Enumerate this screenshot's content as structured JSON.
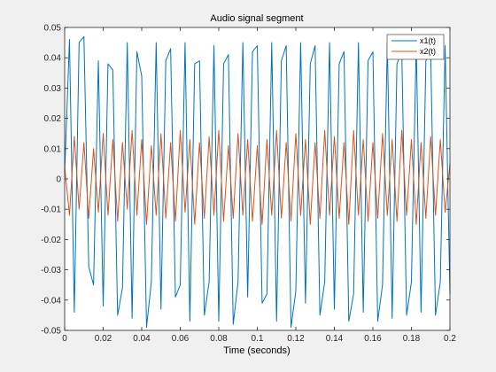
{
  "chart_data": {
    "type": "line",
    "title": "Audio signal segment",
    "xlabel": "Time (seconds)",
    "ylabel": "",
    "xlim": [
      0,
      0.2
    ],
    "ylim": [
      -0.05,
      0.05
    ],
    "x_ticks": [
      0,
      0.02,
      0.04,
      0.06,
      0.08,
      0.1,
      0.12,
      0.14,
      0.16,
      0.18,
      0.2
    ],
    "x_tick_labels": [
      "0",
      "0.02",
      "0.04",
      "0.06",
      "0.08",
      "0.1",
      "0.12",
      "0.14",
      "0.16",
      "0.18",
      "0.2"
    ],
    "y_ticks": [
      -0.05,
      -0.04,
      -0.03,
      -0.02,
      -0.01,
      0,
      0.01,
      0.02,
      0.03,
      0.04,
      0.05
    ],
    "y_tick_labels": [
      "-0.05",
      "-0.04",
      "-0.03",
      "-0.02",
      "-0.01",
      "0",
      "0.01",
      "0.02",
      "0.03",
      "0.04",
      "0.05"
    ],
    "grid": false,
    "legend_position": "top-right",
    "series": [
      {
        "name": "x1(t)",
        "color": "#0072BD",
        "x": [
          0,
          0.0025,
          0.005,
          0.0075,
          0.01,
          0.0125,
          0.015,
          0.0175,
          0.02,
          0.0225,
          0.025,
          0.0275,
          0.03,
          0.0325,
          0.035,
          0.0375,
          0.04,
          0.0425,
          0.045,
          0.0475,
          0.05,
          0.0525,
          0.055,
          0.0575,
          0.06,
          0.0625,
          0.065,
          0.0675,
          0.07,
          0.0725,
          0.075,
          0.0775,
          0.08,
          0.0825,
          0.085,
          0.0875,
          0.09,
          0.0925,
          0.095,
          0.0975,
          0.1,
          0.1025,
          0.105,
          0.1075,
          0.11,
          0.1125,
          0.115,
          0.1175,
          0.12,
          0.1225,
          0.125,
          0.1275,
          0.13,
          0.1325,
          0.135,
          0.1375,
          0.14,
          0.1425,
          0.145,
          0.1475,
          0.15,
          0.1525,
          0.155,
          0.1575,
          0.16,
          0.1625,
          0.165,
          0.1675,
          0.17,
          0.1725,
          0.175,
          0.1775,
          0.18,
          0.1825,
          0.185,
          0.1875,
          0.19,
          0.1925,
          0.195,
          0.1975,
          0.2
        ],
        "values": [
          0.002,
          0.046,
          -0.044,
          0.045,
          0.047,
          -0.029,
          -0.035,
          0.039,
          -0.042,
          0.038,
          0.036,
          -0.045,
          -0.036,
          0.045,
          -0.046,
          0.042,
          0.034,
          -0.049,
          -0.034,
          0.045,
          -0.043,
          0.039,
          0.043,
          -0.039,
          -0.035,
          0.045,
          -0.047,
          0.038,
          0.039,
          -0.045,
          -0.034,
          0.044,
          -0.047,
          0.038,
          0.041,
          -0.048,
          -0.034,
          0.045,
          -0.039,
          0.042,
          0.044,
          -0.041,
          -0.038,
          0.045,
          -0.047,
          0.039,
          0.044,
          -0.049,
          -0.037,
          0.045,
          -0.041,
          0.038,
          0.044,
          -0.045,
          -0.034,
          0.045,
          -0.043,
          0.038,
          0.042,
          -0.047,
          -0.038,
          0.045,
          -0.044,
          0.039,
          0.042,
          -0.047,
          -0.035,
          0.045,
          -0.046,
          0.038,
          0.042,
          -0.045,
          -0.034,
          0.045,
          -0.044,
          0.039,
          0.042,
          -0.045,
          -0.034,
          0.044,
          -0.038
        ]
      },
      {
        "name": "x2(t)",
        "color": "#D95319",
        "x": [
          0,
          0.0025,
          0.005,
          0.0075,
          0.01,
          0.0125,
          0.015,
          0.0175,
          0.02,
          0.0225,
          0.025,
          0.0275,
          0.03,
          0.0325,
          0.035,
          0.0375,
          0.04,
          0.0425,
          0.045,
          0.0475,
          0.05,
          0.0525,
          0.055,
          0.0575,
          0.06,
          0.0625,
          0.065,
          0.0675,
          0.07,
          0.0725,
          0.075,
          0.0775,
          0.08,
          0.0825,
          0.085,
          0.0875,
          0.09,
          0.0925,
          0.095,
          0.0975,
          0.1,
          0.1025,
          0.105,
          0.1075,
          0.11,
          0.1125,
          0.115,
          0.1175,
          0.12,
          0.1225,
          0.125,
          0.1275,
          0.13,
          0.1325,
          0.135,
          0.1375,
          0.14,
          0.1425,
          0.145,
          0.1475,
          0.15,
          0.1525,
          0.155,
          0.1575,
          0.16,
          0.1625,
          0.165,
          0.1675,
          0.17,
          0.1725,
          0.175,
          0.1775,
          0.18,
          0.1825,
          0.185,
          0.1875,
          0.19,
          0.1925,
          0.195,
          0.1975,
          0.2
        ],
        "values": [
          0.004,
          -0.012,
          0.014,
          -0.01,
          0.012,
          -0.013,
          0.01,
          -0.011,
          0.015,
          -0.012,
          0.013,
          -0.014,
          0.012,
          -0.01,
          0.016,
          -0.012,
          0.013,
          -0.015,
          0.011,
          -0.012,
          0.015,
          -0.013,
          0.012,
          -0.014,
          0.016,
          -0.011,
          0.013,
          -0.015,
          0.012,
          -0.013,
          0.014,
          -0.012,
          0.016,
          -0.014,
          0.011,
          -0.013,
          0.015,
          -0.012,
          0.013,
          -0.014,
          0.011,
          -0.015,
          0.013,
          -0.012,
          0.016,
          -0.013,
          0.012,
          -0.014,
          0.015,
          -0.012,
          0.013,
          -0.015,
          0.012,
          -0.013,
          0.016,
          -0.012,
          0.014,
          -0.013,
          0.012,
          -0.015,
          0.016,
          -0.012,
          0.013,
          -0.014,
          0.012,
          -0.013,
          0.015,
          -0.012,
          0.013,
          -0.014,
          0.016,
          -0.012,
          0.013,
          -0.015,
          0.012,
          -0.013,
          0.014,
          -0.012,
          0.013,
          -0.011,
          0.005
        ]
      }
    ]
  }
}
